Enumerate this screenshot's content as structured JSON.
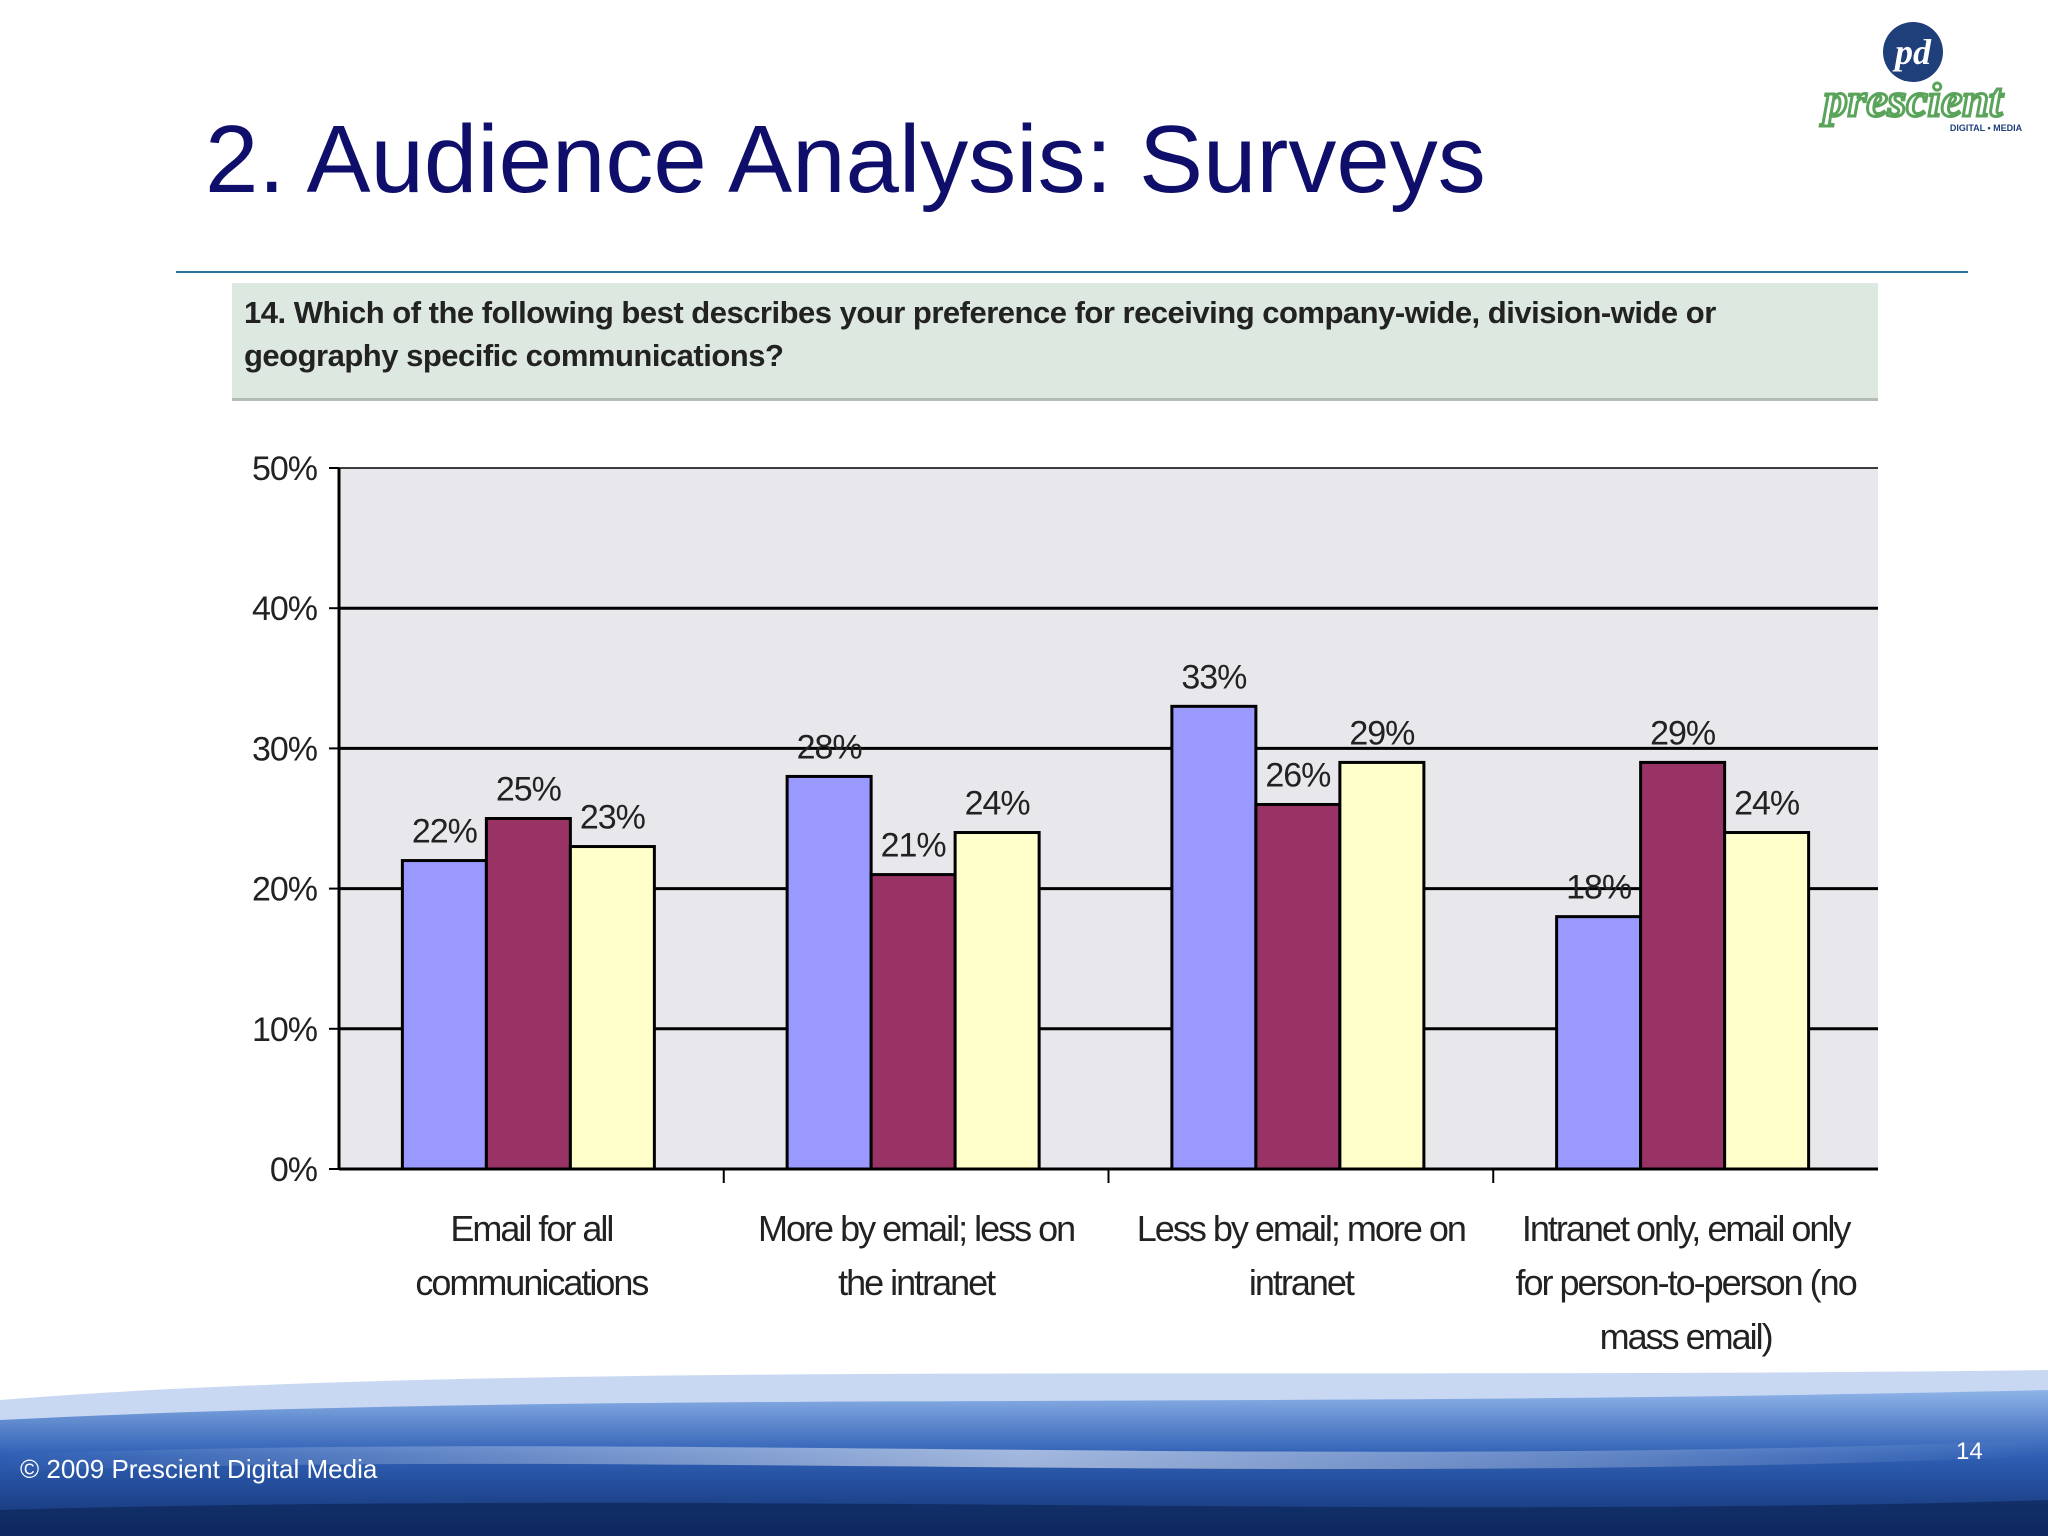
{
  "slide": {
    "title": "2. Audience Analysis: Surveys",
    "question": "14. Which of the following best describes your preference for receiving company-wide, division-wide or geography specific communications?",
    "copyright": "© 2009 Prescient Digital Media",
    "page_number": "14"
  },
  "logo": {
    "initials": "pd",
    "name": "prescient",
    "tagline": "DIGITAL • MEDIA",
    "colors": {
      "mark": "#1f3f7a",
      "text": "#5aa35a"
    }
  },
  "chart_data": {
    "type": "bar",
    "title": "",
    "xlabel": "",
    "ylabel": "",
    "ylim": [
      0,
      50
    ],
    "yticks": [
      "0%",
      "10%",
      "20%",
      "30%",
      "40%",
      "50%"
    ],
    "grid": true,
    "legend": "none",
    "categories": [
      [
        "Email for all",
        "communications"
      ],
      [
        "More by email; less on",
        "the intranet"
      ],
      [
        "Less by email; more on",
        "intranet"
      ],
      [
        "Intranet only, email only",
        "for person-to-person (no",
        "mass email)"
      ]
    ],
    "series": [
      {
        "values": [
          22,
          28,
          33,
          18
        ],
        "labels": [
          "22%",
          "28%",
          "33%",
          "18%"
        ],
        "color": "#9999ff"
      },
      {
        "values": [
          25,
          21,
          26,
          29
        ],
        "labels": [
          "25%",
          "21%",
          "26%",
          "29%"
        ],
        "color": "#993366"
      },
      {
        "values": [
          23,
          24,
          29,
          24
        ],
        "labels": [
          "23%",
          "24%",
          "29%",
          "24%"
        ],
        "color": "#ffffcc"
      }
    ],
    "colors": {
      "plot_background": "#e8e8ec",
      "gridline": "#000000",
      "bar_outline": "#000000"
    }
  }
}
